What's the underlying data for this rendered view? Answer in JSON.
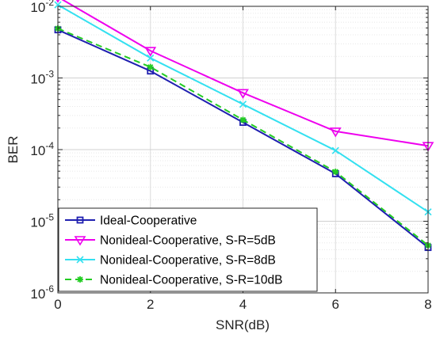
{
  "chart_data": {
    "type": "line",
    "xlabel": "SNR(dB)",
    "ylabel": "BER",
    "xlim": [
      0,
      8
    ],
    "ylim": [
      1e-06,
      0.01
    ],
    "yscale": "log",
    "grid": true,
    "legend_position": "bottom-left",
    "x_ticks": [
      {
        "value": 0,
        "label": "0"
      },
      {
        "value": 2,
        "label": "2"
      },
      {
        "value": 4,
        "label": "4"
      },
      {
        "value": 6,
        "label": "6"
      },
      {
        "value": 8,
        "label": "8"
      }
    ],
    "y_ticks": [
      {
        "value": 1e-06,
        "base": "10",
        "exp": "-6"
      },
      {
        "value": 1e-05,
        "base": "10",
        "exp": "-5"
      },
      {
        "value": 0.0001,
        "base": "10",
        "exp": "-4"
      },
      {
        "value": 0.001,
        "base": "10",
        "exp": "-3"
      },
      {
        "value": 0.01,
        "base": "10",
        "exp": "-2"
      }
    ],
    "x": [
      0,
      2,
      4,
      6,
      8
    ],
    "series": [
      {
        "name": "Ideal-Cooperative",
        "color": "#1f1fb0",
        "marker": "square",
        "dash": "solid",
        "values": [
          0.0047,
          0.00125,
          0.00024,
          4.6e-05,
          4.3e-06
        ]
      },
      {
        "name": "Nonideal-Cooperative, S-R=5dB",
        "color": "#ee00ee",
        "marker": "triangle-down",
        "dash": "solid",
        "values": [
          0.0135,
          0.0024,
          0.00062,
          0.00018,
          0.000113
        ]
      },
      {
        "name": "Nonideal-Cooperative, S-R=8dB",
        "color": "#33e0f0",
        "marker": "x",
        "dash": "solid",
        "values": [
          0.0105,
          0.0019,
          0.00043,
          9.7e-05,
          1.35e-05
        ]
      },
      {
        "name": "Nonideal-Cooperative, S-R=10dB",
        "color": "#22cc22",
        "marker": "asterisk",
        "dash": "dashed",
        "values": [
          0.0049,
          0.00142,
          0.00026,
          4.9e-05,
          4.6e-06
        ]
      }
    ]
  }
}
